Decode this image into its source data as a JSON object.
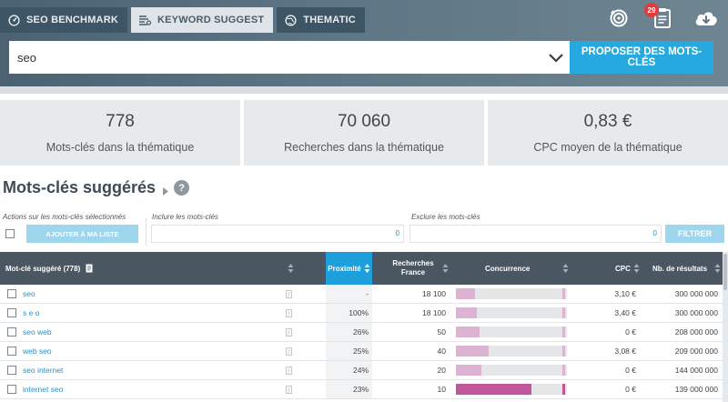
{
  "tabs": [
    {
      "label": "SEO BENCHMARK",
      "icon": "gauge-icon"
    },
    {
      "label": "KEYWORD SUGGEST",
      "icon": "list-icon"
    },
    {
      "label": "THEMATIC",
      "icon": "globe-icon"
    }
  ],
  "top_icons": [
    {
      "name": "target-refresh-icon"
    },
    {
      "name": "clipboard-icon",
      "badge": "29"
    },
    {
      "name": "cloud-download-icon"
    }
  ],
  "search": {
    "value": "seo",
    "button_label": "PROPOSER DES MOTS-CLÉS"
  },
  "stats": [
    {
      "value": "778",
      "label": "Mots-clés dans la thématique"
    },
    {
      "value": "70 060",
      "label": "Recherches dans la thématique"
    },
    {
      "value": "0,83 €",
      "label": "CPC moyen de la thématique"
    }
  ],
  "section": {
    "title": "Mots-clés suggérés",
    "help": "?"
  },
  "filters": {
    "actions_label": "Actions sur les mots-clés sélectionnés",
    "add_button": "AJOUTER À MA LISTE",
    "include_label": "Inclure les mots-clés",
    "include_value": "",
    "include_count": "0",
    "exclude_label": "Exclure les mots-clés",
    "exclude_value": "",
    "exclude_count": "0",
    "filter_button": "FILTRER"
  },
  "table": {
    "headers": {
      "keyword": "Mot-clé suggéré (778)",
      "proximity": "Proximité",
      "searches": [
        "Recherches",
        "France"
      ],
      "competition": "Concurrence",
      "cpc": "CPC",
      "results": "Nb. de résultats"
    },
    "rows": [
      {
        "keyword": "seo",
        "proximity": "-",
        "searches": "18 100",
        "competition": 0.18,
        "level": "low",
        "cpc": "3,10 €",
        "results": "300 000 000"
      },
      {
        "keyword": "s e o",
        "proximity": "100%",
        "searches": "18 100",
        "competition": 0.2,
        "level": "low",
        "cpc": "3,40 €",
        "results": "300 000 000"
      },
      {
        "keyword": "seo web",
        "proximity": "26%",
        "searches": "50",
        "competition": 0.22,
        "level": "low",
        "cpc": "0 €",
        "results": "208 000 000"
      },
      {
        "keyword": "web seo",
        "proximity": "25%",
        "searches": "40",
        "competition": 0.31,
        "level": "low",
        "cpc": "3,08 €",
        "results": "209 000 000"
      },
      {
        "keyword": "seo internet",
        "proximity": "24%",
        "searches": "20",
        "competition": 0.24,
        "level": "low",
        "cpc": "0 €",
        "results": "144 000 000"
      },
      {
        "keyword": "internet seo",
        "proximity": "23%",
        "searches": "10",
        "competition": 0.71,
        "level": "high",
        "cpc": "0 €",
        "results": "139 000 000"
      }
    ]
  },
  "colors": {
    "accent": "#26a9df",
    "header_dark": "#4a5662",
    "competition_low": "#dcb3d3",
    "competition_high": "#c0579b",
    "link": "#2b8fc4"
  }
}
